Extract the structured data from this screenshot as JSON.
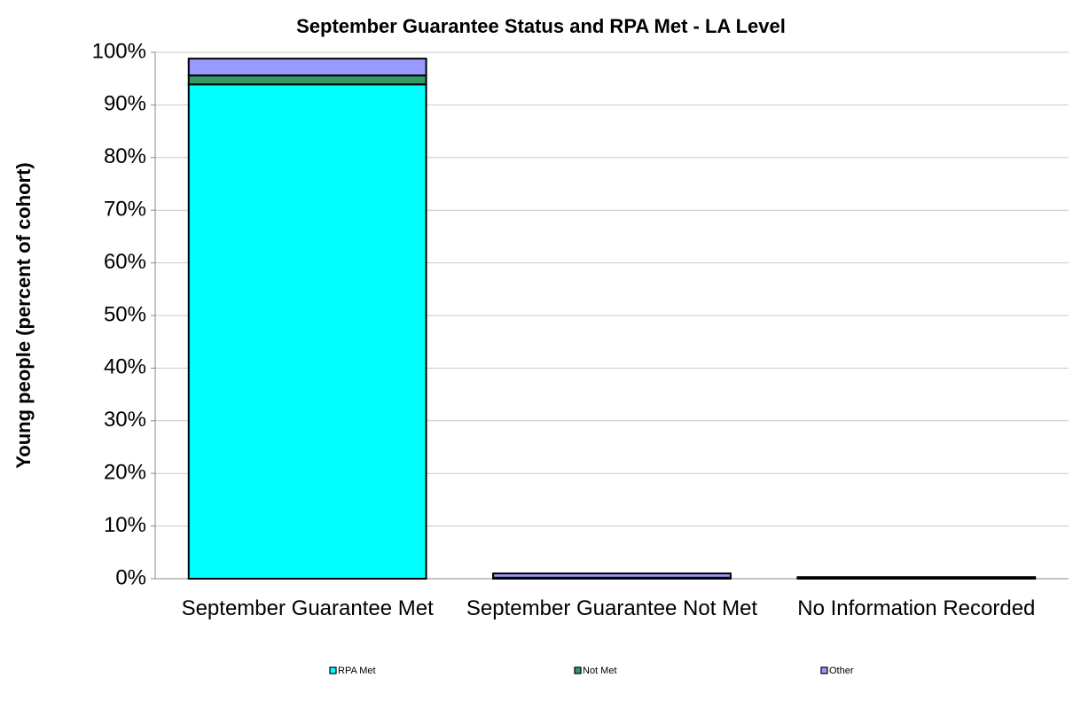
{
  "chart_data": {
    "type": "stacked_bar",
    "title": "September Guarantee Status and RPA Met - LA Level",
    "y_label": "Young people (percent of cohort)",
    "categories": [
      "September Guarantee Met",
      "September Guarantee Not Met",
      "No Information Recorded"
    ],
    "series": [
      {
        "name": "RPA Met",
        "color": "#00ffff",
        "values": [
          93.9,
          0,
          0
        ]
      },
      {
        "name": "Not Met",
        "color": "#339966",
        "values": [
          1.7,
          0.2,
          0
        ]
      },
      {
        "name": "Other",
        "color": "#9999ff",
        "values": [
          3.2,
          0.8,
          0.3
        ]
      }
    ],
    "ylim": [
      0,
      100
    ],
    "yticks": [
      {
        "value": 0,
        "label": "0%"
      },
      {
        "value": 10,
        "label": "10%"
      },
      {
        "value": 20,
        "label": "20%"
      },
      {
        "value": 30,
        "label": "30%"
      },
      {
        "value": 40,
        "label": "40%"
      },
      {
        "value": 50,
        "label": "50%"
      },
      {
        "value": 60,
        "label": "60%"
      },
      {
        "value": 70,
        "label": "70%"
      },
      {
        "value": 80,
        "label": "80%"
      },
      {
        "value": 90,
        "label": "90%"
      },
      {
        "value": 100,
        "label": "100%"
      }
    ],
    "grid": true,
    "legend": "bottom"
  }
}
